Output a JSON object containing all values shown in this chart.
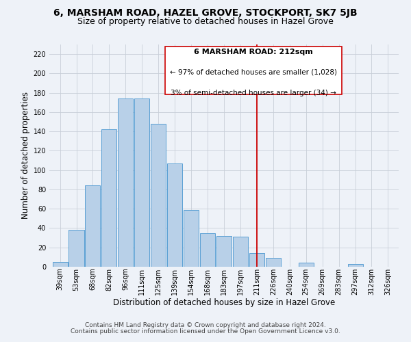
{
  "title": "6, MARSHAM ROAD, HAZEL GROVE, STOCKPORT, SK7 5JB",
  "subtitle": "Size of property relative to detached houses in Hazel Grove",
  "xlabel": "Distribution of detached houses by size in Hazel Grove",
  "ylabel": "Number of detached properties",
  "categories": [
    "39sqm",
    "53sqm",
    "68sqm",
    "82sqm",
    "96sqm",
    "111sqm",
    "125sqm",
    "139sqm",
    "154sqm",
    "168sqm",
    "183sqm",
    "197sqm",
    "211sqm",
    "226sqm",
    "240sqm",
    "254sqm",
    "269sqm",
    "283sqm",
    "297sqm",
    "312sqm",
    "326sqm"
  ],
  "values": [
    5,
    38,
    84,
    142,
    174,
    174,
    148,
    107,
    59,
    35,
    32,
    31,
    14,
    9,
    0,
    4,
    0,
    0,
    3,
    0,
    0
  ],
  "bar_color": "#b8d0e8",
  "bar_edge_color": "#5a9fd4",
  "highlight_index": 12,
  "annotation_title": "6 MARSHAM ROAD: 212sqm",
  "annotation_line1": "← 97% of detached houses are smaller (1,028)",
  "annotation_line2": "3% of semi-detached houses are larger (34) →",
  "annotation_box_color": "#ffffff",
  "annotation_box_edge": "#cc0000",
  "redline_color": "#cc0000",
  "footer1": "Contains HM Land Registry data © Crown copyright and database right 2024.",
  "footer2": "Contains public sector information licensed under the Open Government Licence v3.0.",
  "ylim": [
    0,
    230
  ],
  "yticks": [
    0,
    20,
    40,
    60,
    80,
    100,
    120,
    140,
    160,
    180,
    200,
    220
  ],
  "grid_color": "#c8cfd8",
  "background_color": "#eef2f8",
  "title_fontsize": 10,
  "subtitle_fontsize": 9,
  "axis_label_fontsize": 8.5,
  "tick_fontsize": 7,
  "footer_fontsize": 6.5
}
